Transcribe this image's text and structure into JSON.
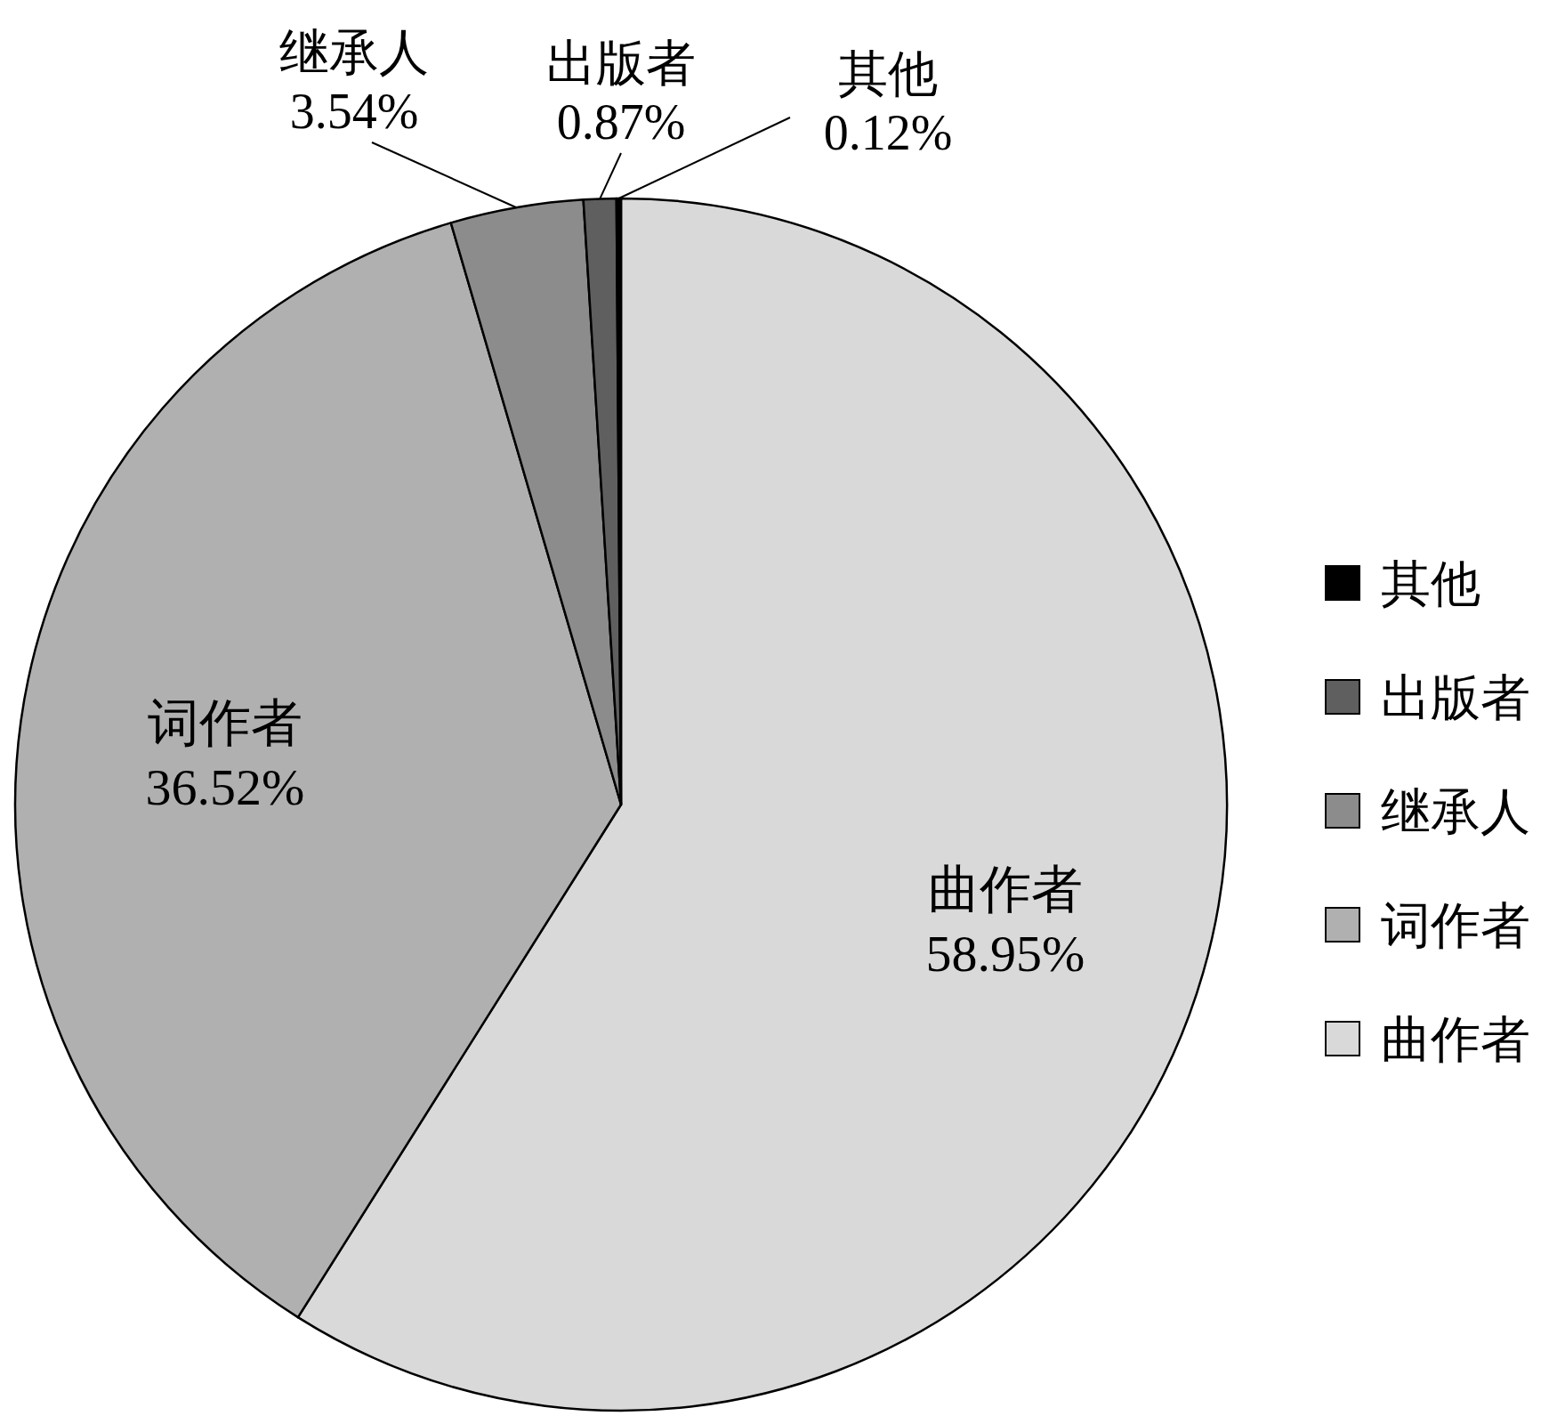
{
  "chart_data": {
    "type": "pie",
    "categories": [
      "曲作者",
      "词作者",
      "继承人",
      "出版者",
      "其他"
    ],
    "values": [
      58.95,
      36.52,
      3.54,
      0.87,
      0.12
    ],
    "colors": [
      "#d9d9d9",
      "#b0b0b0",
      "#8c8c8c",
      "#5f5f5f",
      "#000000"
    ],
    "value_labels": [
      "58.95%",
      "36.52%",
      "3.54%",
      "0.87%",
      "0.12%"
    ],
    "legend": "right"
  }
}
